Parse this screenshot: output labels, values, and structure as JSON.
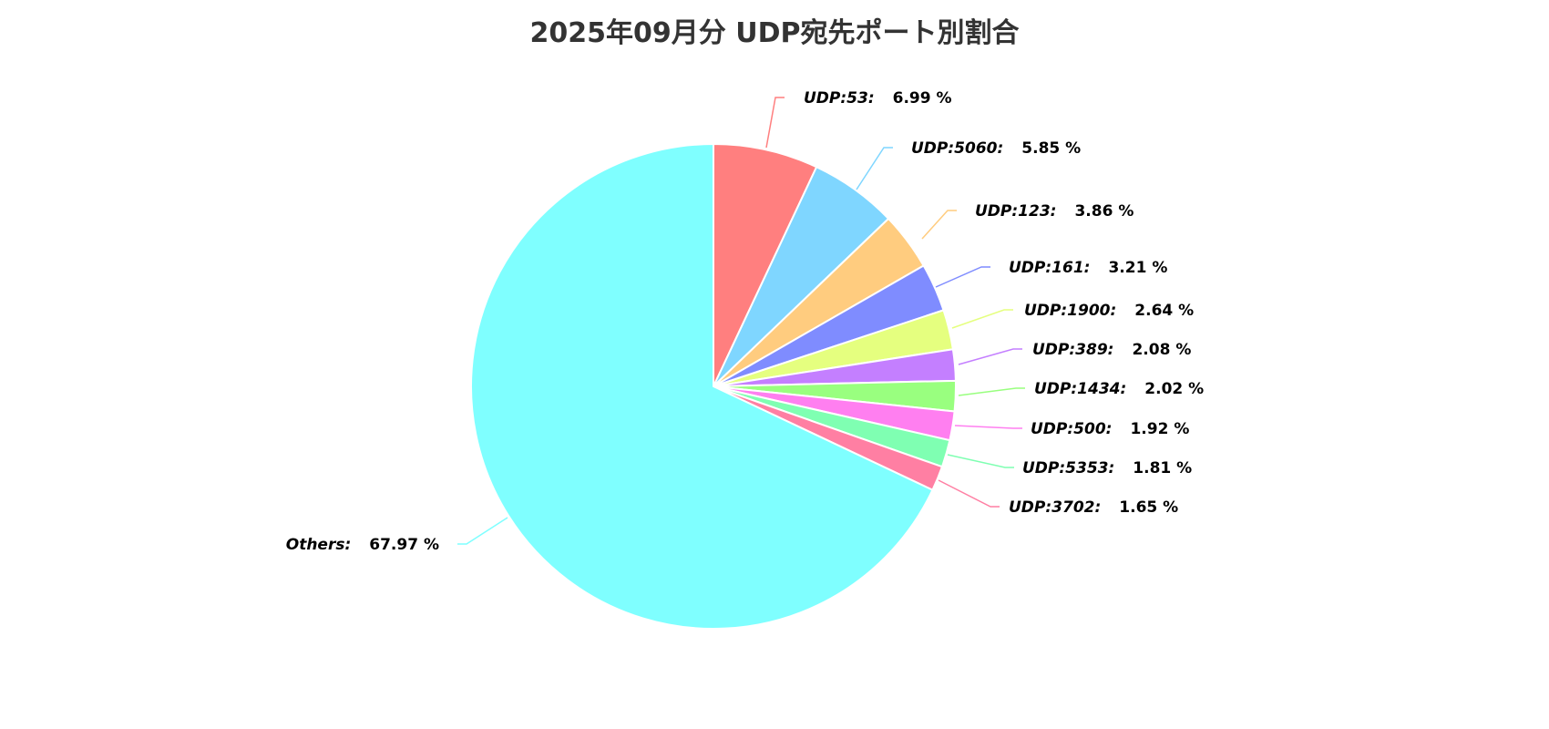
{
  "chart_data": {
    "type": "pie",
    "title": "2025年09月分 UDP宛先ポート別割合",
    "unit": "%",
    "start": "12 o'clock, clockwise",
    "slices": [
      {
        "label": "UDP:53",
        "value": 6.99,
        "color": "#ff7f7f"
      },
      {
        "label": "UDP:5060",
        "value": 5.85,
        "color": "#7fd6ff"
      },
      {
        "label": "UDP:123",
        "value": 3.86,
        "color": "#ffcc7f"
      },
      {
        "label": "UDP:161",
        "value": 3.21,
        "color": "#7f8cff"
      },
      {
        "label": "UDP:1900",
        "value": 2.64,
        "color": "#e5ff7f"
      },
      {
        "label": "UDP:389",
        "value": 2.08,
        "color": "#c47fff"
      },
      {
        "label": "UDP:1434",
        "value": 2.02,
        "color": "#99ff7f"
      },
      {
        "label": "UDP:500",
        "value": 1.92,
        "color": "#ff7ff0"
      },
      {
        "label": "UDP:5353",
        "value": 1.81,
        "color": "#7fffb2"
      },
      {
        "label": "UDP:3702",
        "value": 1.65,
        "color": "#ff7fa3"
      },
      {
        "label": "Others",
        "value": 67.97,
        "color": "#7fffff"
      }
    ]
  }
}
